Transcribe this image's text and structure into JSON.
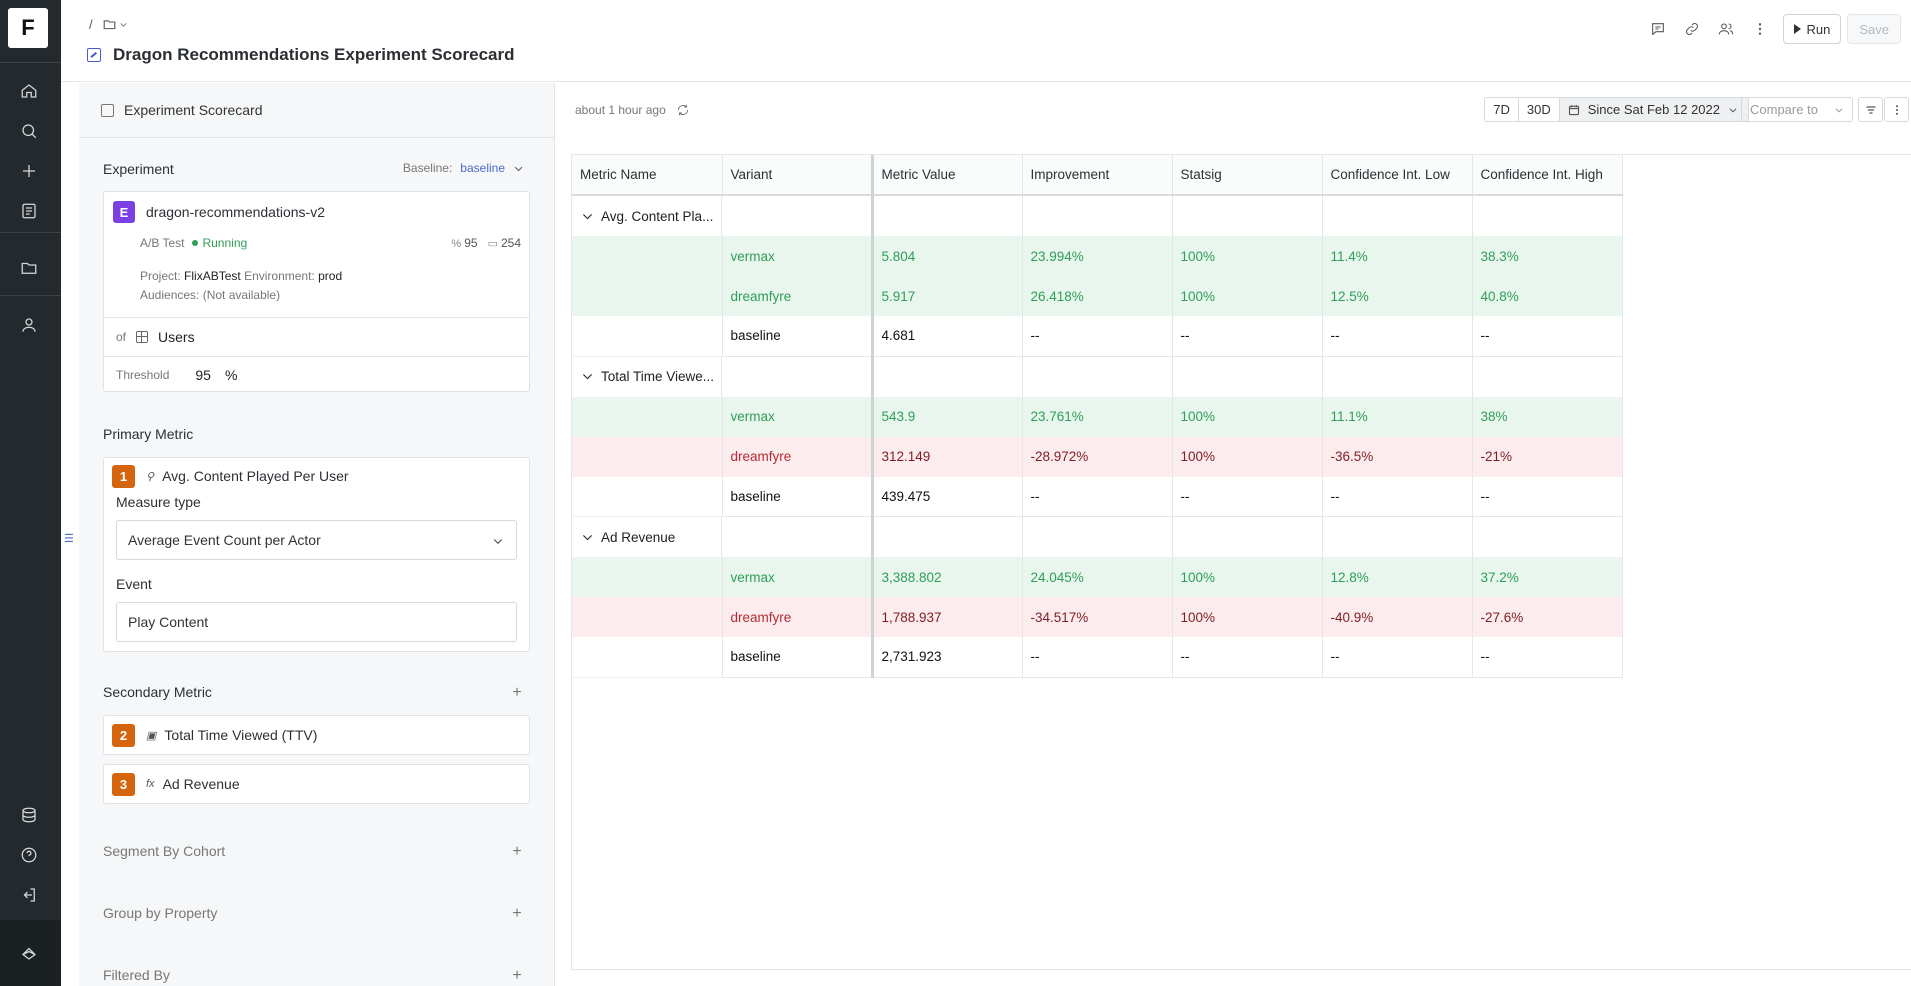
{
  "nav": {
    "logo": "F",
    "items": [
      {
        "icon": "home-icon"
      },
      {
        "icon": "search-icon"
      },
      {
        "icon": "plus-icon"
      },
      {
        "icon": "reports-icon"
      },
      {
        "icon": "folder-icon"
      },
      {
        "icon": "user-icon"
      },
      {
        "icon": "database-icon"
      },
      {
        "icon": "help-icon"
      },
      {
        "icon": "logout-icon"
      },
      {
        "icon": "brand-icon"
      }
    ]
  },
  "header": {
    "breadcrumb_separator": "/",
    "title": "Dragon Recommendations Experiment Scorecard",
    "run_label": "Run",
    "save_label": "Save"
  },
  "left_panel": {
    "tab_title": "Experiment Scorecard",
    "experiment": {
      "section_title": "Experiment",
      "baseline_label": "Baseline:",
      "baseline_value": "baseline",
      "badge": "E",
      "name": "dragon-recommendations-v2",
      "type": "A/B Test",
      "status": "Running",
      "stat_1": "95",
      "stat_2": "254",
      "project_label": "Project:",
      "project_value": "FlixABTest",
      "environment_label": "Environment:",
      "environment_value": "prod",
      "audiences_label": "Audiences:",
      "audiences_value": "(Not available)",
      "of_label": "of",
      "of_value": "Users",
      "threshold_label": "Threshold",
      "threshold_value": "95",
      "threshold_unit": "%"
    },
    "primary_metric": {
      "section_title": "Primary Metric",
      "number": "1",
      "name": "Avg. Content Played Per User",
      "measure_label": "Measure type",
      "measure_value": "Average Event Count per Actor",
      "event_label": "Event",
      "event_value": "Play Content"
    },
    "secondary_metric": {
      "section_title": "Secondary Metric",
      "items": [
        {
          "number": "2",
          "name": "Total Time Viewed (TTV)"
        },
        {
          "number": "3",
          "icon_text": "fx",
          "name": "Ad Revenue"
        }
      ]
    },
    "segment_title": "Segment By Cohort",
    "group_title": "Group by Property",
    "filter_title": "Filtered By"
  },
  "right_panel": {
    "updated": "about 1 hour ago",
    "range_7d": "7D",
    "range_30d": "30D",
    "range_since": "Since Sat Feb 12 2022",
    "compare_placeholder": "Compare to",
    "columns": [
      "Metric Name",
      "Variant",
      "Metric Value",
      "Improvement",
      "Statsig",
      "Confidence Int. Low",
      "Confidence Int. High"
    ],
    "groups": [
      {
        "name": "Avg. Content Pla...",
        "rows": [
          {
            "status": "good",
            "variant": "vermax",
            "value": "5.804",
            "improvement": "23.994%",
            "statsig": "100%",
            "low": "11.4%",
            "high": "38.3%"
          },
          {
            "status": "good",
            "variant": "dreamfyre",
            "value": "5.917",
            "improvement": "26.418%",
            "statsig": "100%",
            "low": "12.5%",
            "high": "40.8%"
          },
          {
            "status": "base",
            "variant": "baseline",
            "value": "4.681",
            "improvement": "--",
            "statsig": "--",
            "low": "--",
            "high": "--"
          }
        ]
      },
      {
        "name": "Total Time Viewe...",
        "rows": [
          {
            "status": "good",
            "variant": "vermax",
            "value": "543.9",
            "improvement": "23.761%",
            "statsig": "100%",
            "low": "11.1%",
            "high": "38%"
          },
          {
            "status": "bad",
            "variant": "dreamfyre",
            "value": "312.149",
            "improvement": "-28.972%",
            "statsig": "100%",
            "low": "-36.5%",
            "high": "-21%"
          },
          {
            "status": "base",
            "variant": "baseline",
            "value": "439.475",
            "improvement": "--",
            "statsig": "--",
            "low": "--",
            "high": "--"
          }
        ]
      },
      {
        "name": "Ad Revenue",
        "rows": [
          {
            "status": "good",
            "variant": "vermax",
            "value": "3,388.802",
            "improvement": "24.045%",
            "statsig": "100%",
            "low": "12.8%",
            "high": "37.2%"
          },
          {
            "status": "bad",
            "variant": "dreamfyre",
            "value": "1,788.937",
            "improvement": "-34.517%",
            "statsig": "100%",
            "low": "-40.9%",
            "high": "-27.6%"
          },
          {
            "status": "base",
            "variant": "baseline",
            "value": "2,731.923",
            "improvement": "--",
            "statsig": "--",
            "low": "--",
            "high": "--"
          }
        ]
      }
    ]
  }
}
